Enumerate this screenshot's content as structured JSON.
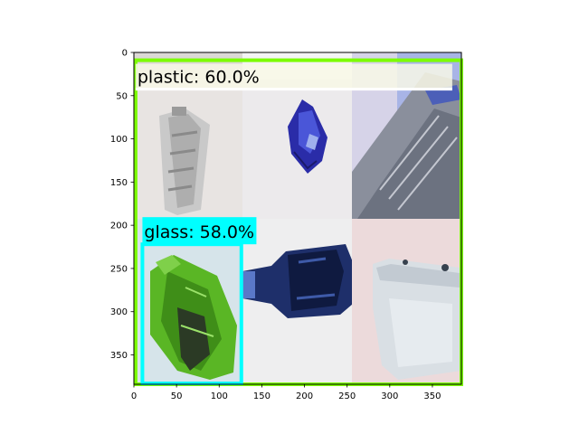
{
  "plot": {
    "x_ticks": [
      "0",
      "50",
      "100",
      "150",
      "200",
      "250",
      "300",
      "350"
    ],
    "y_ticks": [
      "0",
      "50",
      "100",
      "150",
      "200",
      "250",
      "300",
      "350"
    ],
    "x_range": [
      0,
      384
    ],
    "y_range": [
      0,
      384
    ]
  },
  "detections": [
    {
      "label": "plastic: 60.0%",
      "class": "plastic",
      "score": 60.0,
      "color": "#7cfc00",
      "box": {
        "x0": 2,
        "y0": 9,
        "x1": 384,
        "y1": 384
      }
    },
    {
      "label": "glass: 58.0%",
      "class": "glass",
      "score": 58.0,
      "color": "#00ffff",
      "box": {
        "x0": 10,
        "y0": 222,
        "x1": 126,
        "y1": 383
      }
    }
  ],
  "image_tiles": [
    {
      "content": "crushed clear plastic bottle"
    },
    {
      "content": "crushed blue can"
    },
    {
      "content": "plastic packaging with printed text"
    },
    {
      "content": "green crushed plastic bottle"
    },
    {
      "content": "dark blue glass bottle"
    },
    {
      "content": "white plastic container"
    }
  ]
}
